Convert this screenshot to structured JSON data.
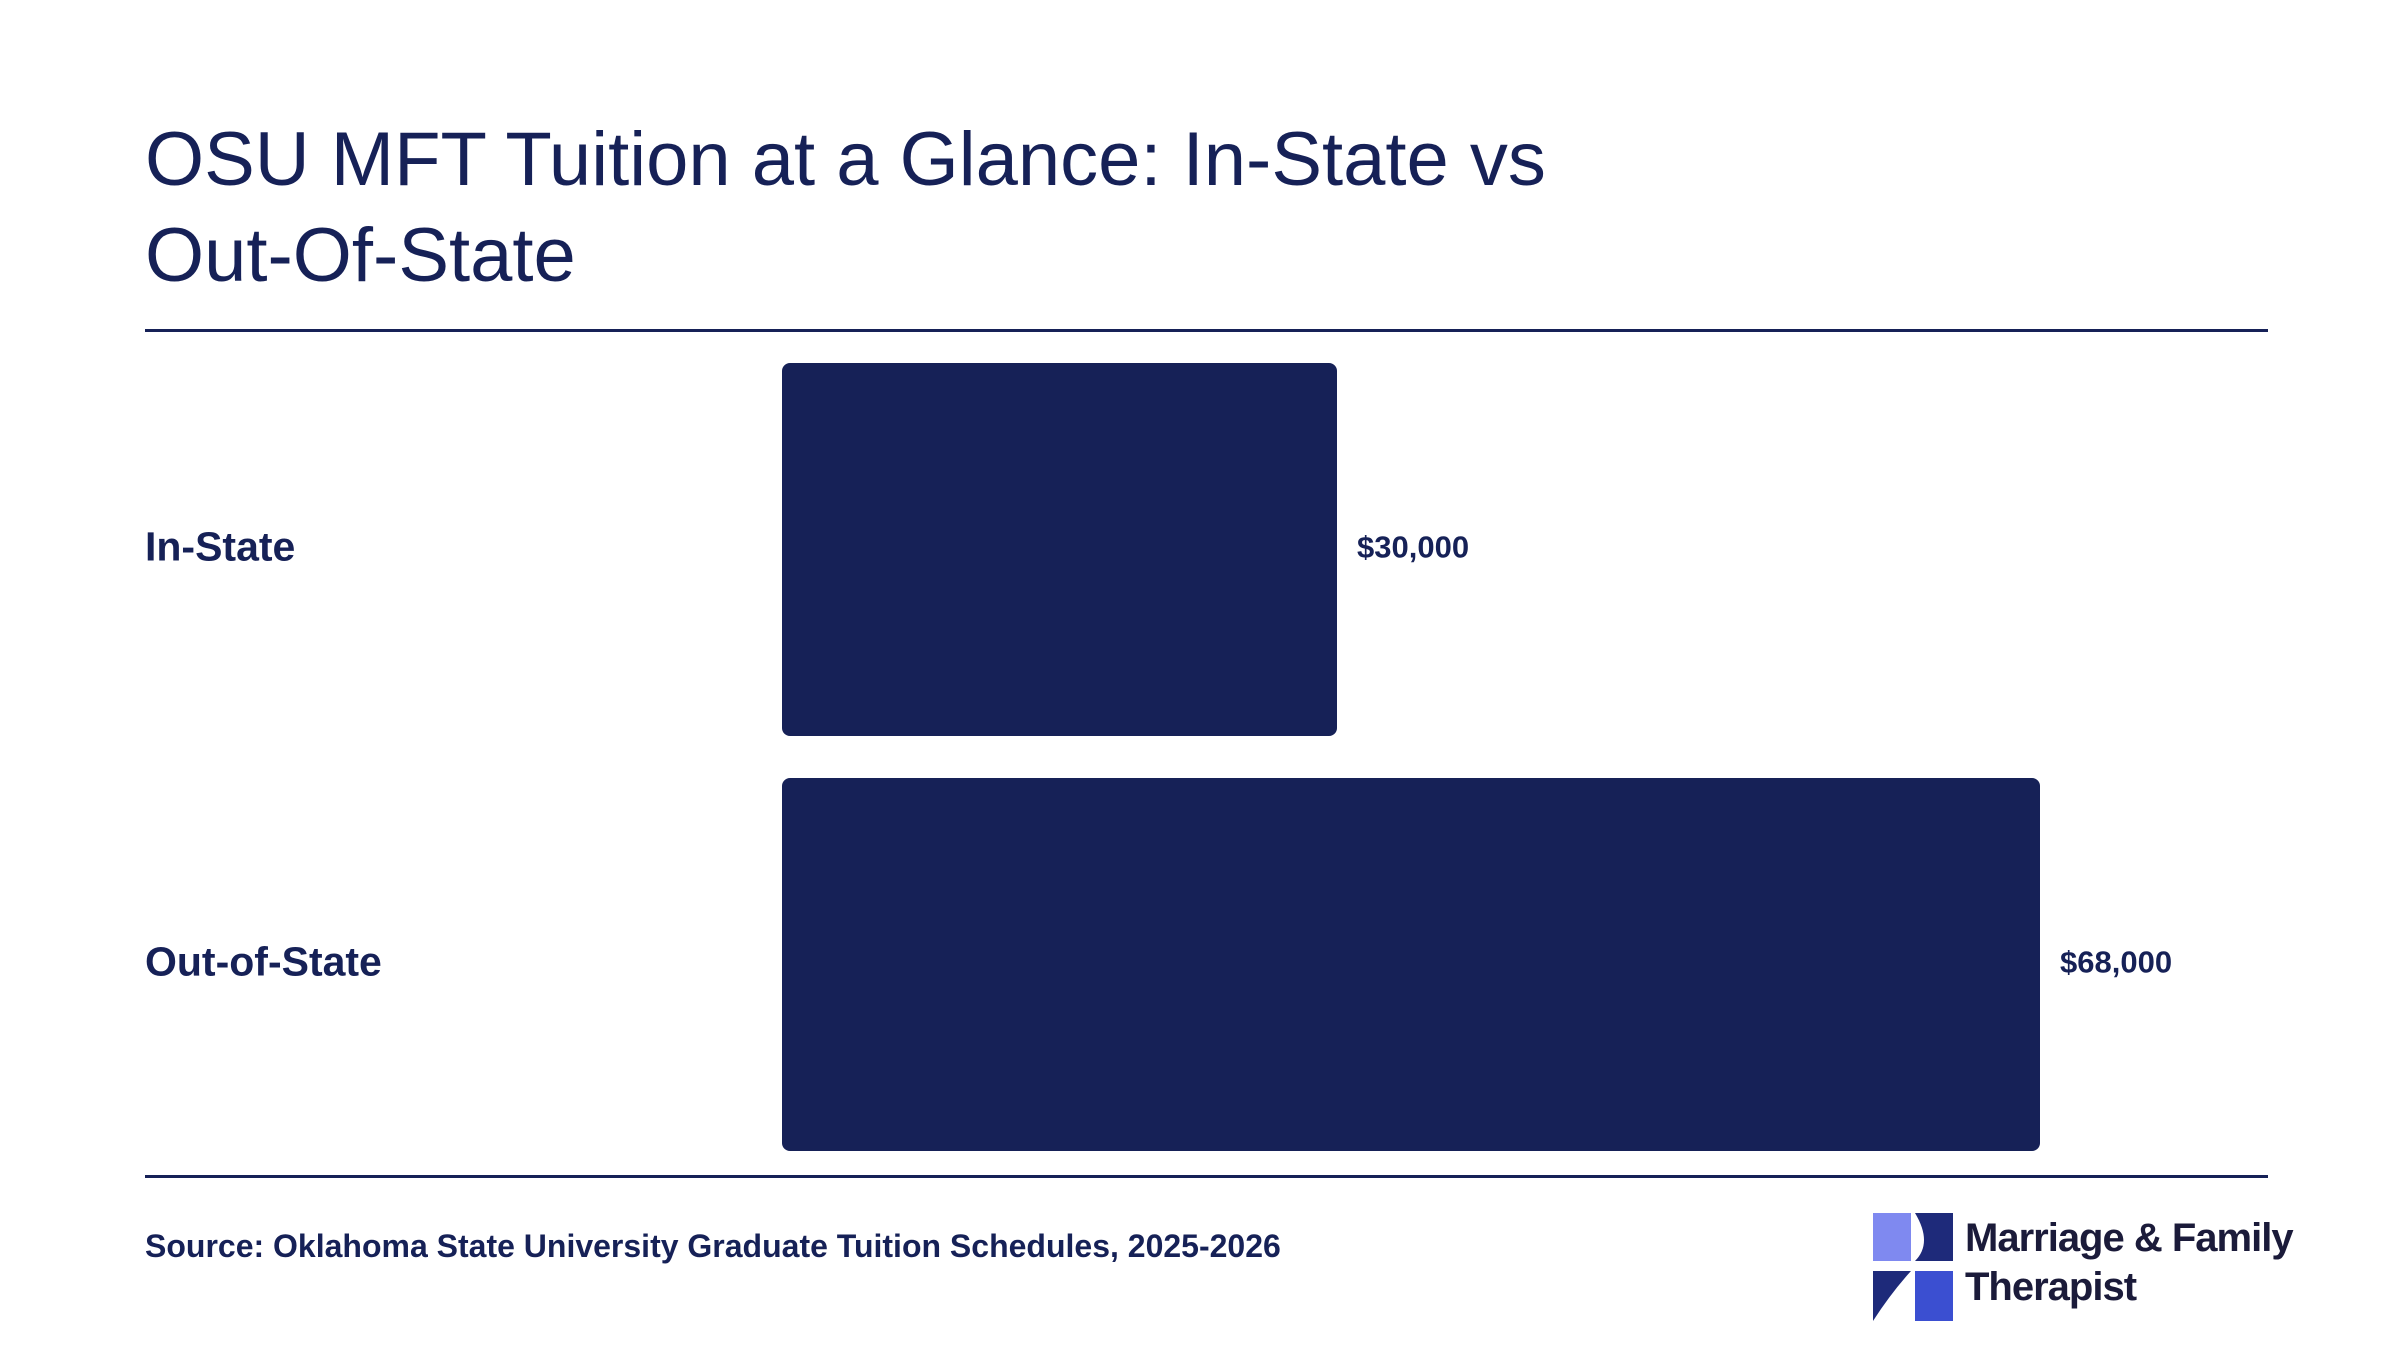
{
  "chart_data": {
    "type": "bar",
    "orientation": "horizontal",
    "title": "OSU MFT Tuition at a Glance: In-State vs Out-Of-State",
    "categories": [
      "In-State",
      "Out-of-State"
    ],
    "values": [
      30000,
      68000
    ],
    "value_labels": [
      "$30,000",
      "$68,000"
    ],
    "xlim": [
      0,
      68000
    ],
    "grid": false,
    "legend": "none",
    "bar_color": "#162157",
    "text_color": "#162157"
  },
  "footer": {
    "source": "Source: Oklahoma State University Graduate Tuition Schedules, 2025-2026"
  },
  "logo": {
    "line1": "Marriage & Family",
    "line2": "Therapist",
    "colors": [
      "#7f89f0",
      "#1e2a7a",
      "#3b4fd1",
      "#162157"
    ]
  }
}
